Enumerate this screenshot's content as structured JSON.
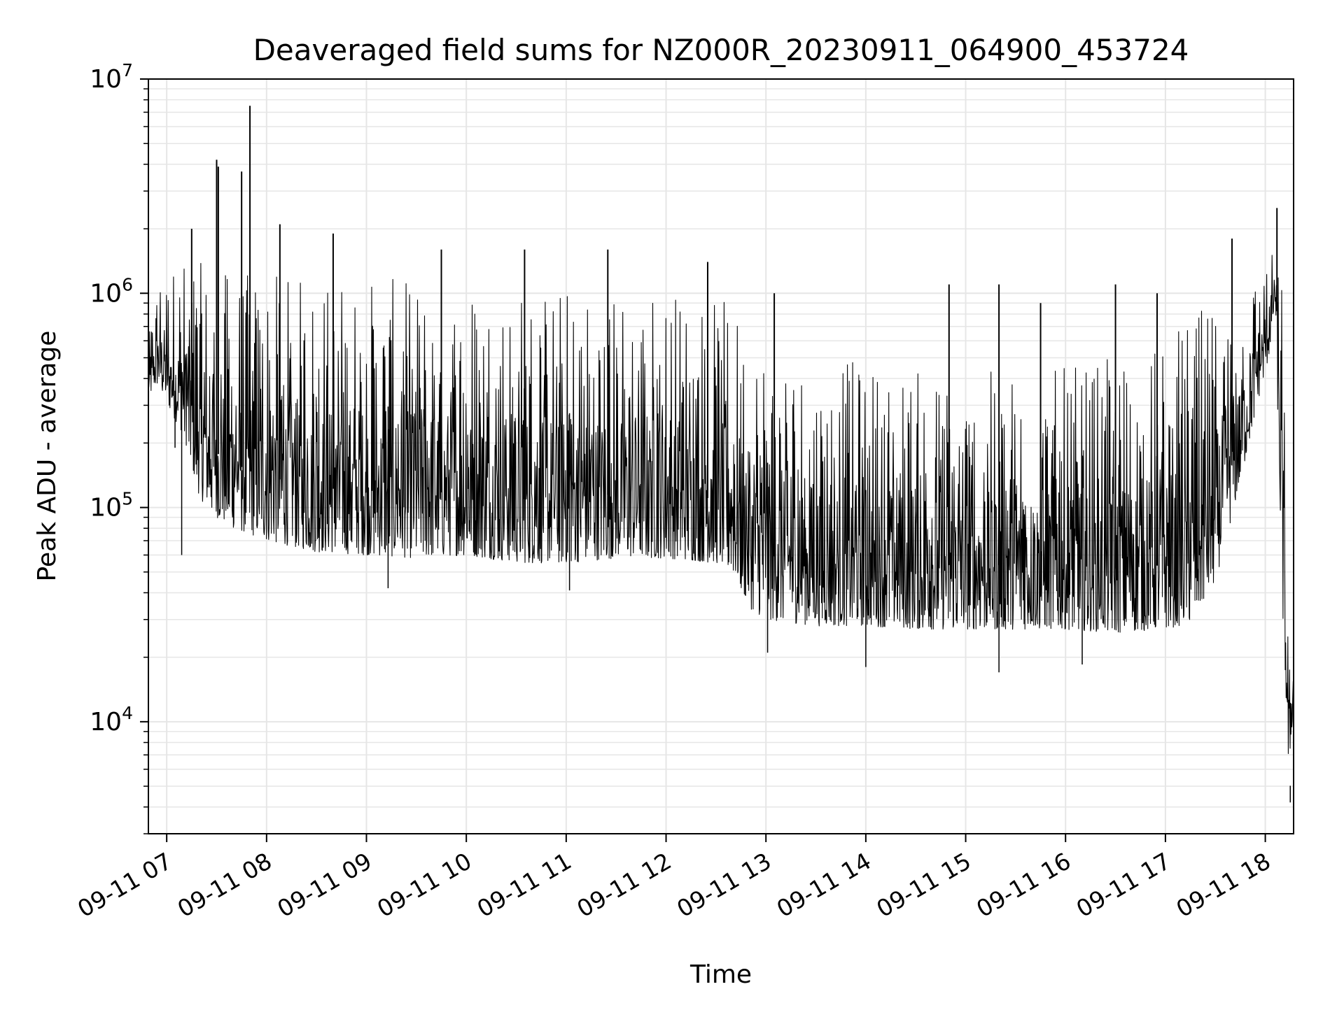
{
  "chart_data": {
    "type": "line",
    "title": "Deaveraged field sums for NZ000R_20230911_064900_453724",
    "xlabel": "Time",
    "ylabel": "Peak ADU - average",
    "y_scale": "log",
    "ylim": [
      3000,
      10000000
    ],
    "xlim": [
      "2023-09-11 06:49",
      "2023-09-11 18:17"
    ],
    "grid": true,
    "grid_minor": true,
    "legend": "none",
    "line_color": "#000000",
    "grid_color": "#e6e6e6",
    "x_ticks": [
      {
        "time": "2023-09-11 07:00",
        "label": "09-11 07"
      },
      {
        "time": "2023-09-11 08:00",
        "label": "09-11 08"
      },
      {
        "time": "2023-09-11 09:00",
        "label": "09-11 09"
      },
      {
        "time": "2023-09-11 10:00",
        "label": "09-11 10"
      },
      {
        "time": "2023-09-11 11:00",
        "label": "09-11 11"
      },
      {
        "time": "2023-09-11 12:00",
        "label": "09-11 12"
      },
      {
        "time": "2023-09-11 13:00",
        "label": "09-11 13"
      },
      {
        "time": "2023-09-11 14:00",
        "label": "09-11 14"
      },
      {
        "time": "2023-09-11 15:00",
        "label": "09-11 15"
      },
      {
        "time": "2023-09-11 16:00",
        "label": "09-11 16"
      },
      {
        "time": "2023-09-11 17:00",
        "label": "09-11 17"
      },
      {
        "time": "2023-09-11 18:00",
        "label": "09-11 18"
      }
    ],
    "y_ticks": [
      {
        "value": 10000,
        "base": "10",
        "exp": "4"
      },
      {
        "value": 100000,
        "base": "10",
        "exp": "5"
      },
      {
        "value": 1000000,
        "base": "10",
        "exp": "6"
      },
      {
        "value": 10000000,
        "base": "10",
        "exp": "7"
      }
    ],
    "series": [
      {
        "color": "#000000",
        "x": [
          "2023-09-11 06:49",
          "2023-09-11 06:55",
          "2023-09-11 07:00",
          "2023-09-11 07:10",
          "2023-09-11 07:20",
          "2023-09-11 07:30",
          "2023-09-11 07:40",
          "2023-09-11 07:50",
          "2023-09-11 08:00",
          "2023-09-11 08:30",
          "2023-09-11 09:00",
          "2023-09-11 09:30",
          "2023-09-11 10:00",
          "2023-09-11 10:30",
          "2023-09-11 11:00",
          "2023-09-11 11:30",
          "2023-09-11 12:00",
          "2023-09-11 12:30",
          "2023-09-11 12:40",
          "2023-09-11 12:50",
          "2023-09-11 13:00",
          "2023-09-11 13:30",
          "2023-09-11 14:00",
          "2023-09-11 14:30",
          "2023-09-11 15:00",
          "2023-09-11 15:30",
          "2023-09-11 16:00",
          "2023-09-11 16:30",
          "2023-09-11 17:00",
          "2023-09-11 17:15",
          "2023-09-11 17:30",
          "2023-09-11 17:45",
          "2023-09-11 17:55",
          "2023-09-11 18:02",
          "2023-09-11 18:06",
          "2023-09-11 18:10",
          "2023-09-11 18:14",
          "2023-09-11 18:17"
        ],
        "y_low": [
          330000,
          380000,
          300000,
          220000,
          110000,
          90000,
          80000,
          75000,
          70000,
          62000,
          60000,
          58000,
          60000,
          55000,
          55000,
          58000,
          58000,
          55000,
          50000,
          34000,
          30000,
          28000,
          28000,
          27000,
          27000,
          27000,
          27000,
          26000,
          27000,
          29000,
          45000,
          130000,
          300000,
          500000,
          900000,
          40000,
          6000,
          12000
        ],
        "y_high": [
          600000,
          1300000,
          1300000,
          1500000,
          1400000,
          1300000,
          1300000,
          1250000,
          1250000,
          1200000,
          1200000,
          1150000,
          1200000,
          1100000,
          1100000,
          1050000,
          1100000,
          950000,
          900000,
          700000,
          650000,
          500000,
          480000,
          450000,
          420000,
          450000,
          450000,
          500000,
          600000,
          800000,
          900000,
          1000000,
          1300000,
          1500000,
          1600000,
          1500000,
          20000,
          20000
        ],
        "spikes": [
          {
            "x": "2023-09-11 07:15",
            "y": 2000000
          },
          {
            "x": "2023-09-11 07:30",
            "y": 4200000
          },
          {
            "x": "2023-09-11 07:31",
            "y": 3900000
          },
          {
            "x": "2023-09-11 07:45",
            "y": 3700000
          },
          {
            "x": "2023-09-11 07:50",
            "y": 7500000
          },
          {
            "x": "2023-09-11 08:08",
            "y": 2100000
          },
          {
            "x": "2023-09-11 08:40",
            "y": 1900000
          },
          {
            "x": "2023-09-11 09:45",
            "y": 1600000
          },
          {
            "x": "2023-09-11 10:35",
            "y": 1600000
          },
          {
            "x": "2023-09-11 11:25",
            "y": 1600000
          },
          {
            "x": "2023-09-11 12:25",
            "y": 1400000
          },
          {
            "x": "2023-09-11 13:05",
            "y": 1000000
          },
          {
            "x": "2023-09-11 14:50",
            "y": 1100000
          },
          {
            "x": "2023-09-11 15:20",
            "y": 1100000
          },
          {
            "x": "2023-09-11 15:45",
            "y": 900000
          },
          {
            "x": "2023-09-11 16:30",
            "y": 1100000
          },
          {
            "x": "2023-09-11 16:55",
            "y": 1000000
          },
          {
            "x": "2023-09-11 17:40",
            "y": 1800000
          },
          {
            "x": "2023-09-11 18:07",
            "y": 2500000
          }
        ],
        "dips": [
          {
            "x": "2023-09-11 07:05",
            "y": 190000
          },
          {
            "x": "2023-09-11 07:09",
            "y": 60000
          },
          {
            "x": "2023-09-11 09:13",
            "y": 42000
          },
          {
            "x": "2023-09-11 11:02",
            "y": 41000
          },
          {
            "x": "2023-09-11 13:01",
            "y": 21000
          },
          {
            "x": "2023-09-11 14:00",
            "y": 18000
          },
          {
            "x": "2023-09-11 15:20",
            "y": 17000
          },
          {
            "x": "2023-09-11 16:10",
            "y": 18500
          },
          {
            "x": "2023-09-11 18:15",
            "y": 4200
          }
        ]
      }
    ]
  }
}
